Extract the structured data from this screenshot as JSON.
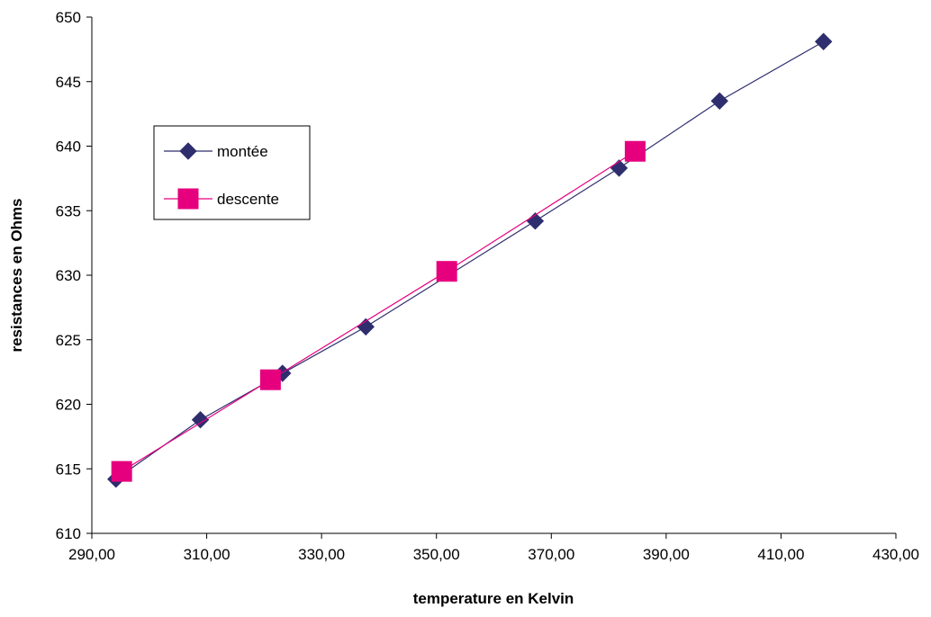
{
  "chart_data": {
    "type": "line",
    "title": "",
    "xlabel": "temperature en Kelvin",
    "ylabel": "resistances en Ohms",
    "xlim": [
      290,
      430
    ],
    "ylim": [
      610,
      650
    ],
    "x_ticks": [
      "290,00",
      "310,00",
      "330,00",
      "350,00",
      "370,00",
      "390,00",
      "410,00",
      "430,00"
    ],
    "y_ticks": [
      "610",
      "615",
      "620",
      "625",
      "630",
      "635",
      "640",
      "645",
      "650"
    ],
    "grid": false,
    "legend_position": "left",
    "series": [
      {
        "name": "montée",
        "color": "#2e2e6e",
        "marker": "diamond",
        "x": [
          294.2,
          308.9,
          323.2,
          337.7,
          367.2,
          381.8,
          399.3,
          417.4
        ],
        "y": [
          614.2,
          618.8,
          622.4,
          626.0,
          634.2,
          638.3,
          643.5,
          648.1
        ]
      },
      {
        "name": "descente",
        "color": "#e6007e",
        "marker": "square",
        "x": [
          295.2,
          321.1,
          351.8,
          384.6
        ],
        "y": [
          614.8,
          621.9,
          630.3,
          639.6
        ]
      }
    ]
  }
}
